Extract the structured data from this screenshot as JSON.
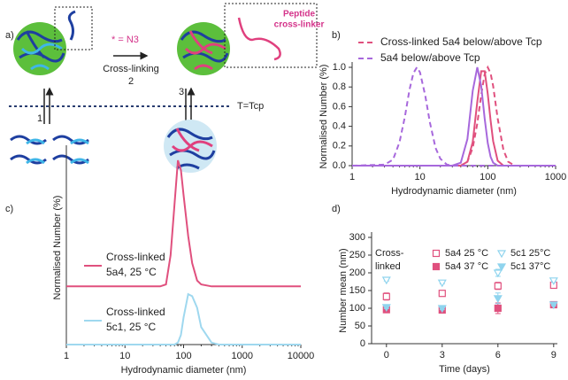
{
  "scheme": {
    "panel": "a)",
    "azide": "* = N3",
    "step2_label": "Cross-linking",
    "step2": "2",
    "step1": "1",
    "step3": "3",
    "temperature": "T=Tcp",
    "peptide": [
      "Peptide",
      "cross-linker"
    ]
  },
  "chart_data": [
    {
      "type": "line",
      "panel": "b)",
      "xlabel": "Hydrodynamic diameter (nm)",
      "ylabel": "Normalised Number (%)",
      "xscale": "log",
      "xlim": [
        1,
        1000
      ],
      "xticks": [
        1,
        10,
        100,
        1000
      ],
      "ylim": [
        0,
        1
      ],
      "yticks": [
        {
          "value": 0,
          "label": "0.0"
        },
        0.2,
        0.4,
        0.6,
        0.8,
        {
          "value": 1,
          "label": "1.0"
        }
      ],
      "x": [
        1,
        3,
        4,
        5,
        6,
        7,
        8,
        9,
        10,
        12,
        14,
        17,
        20,
        25,
        30,
        40,
        50,
        60,
        70,
        80,
        90,
        100,
        110,
        120,
        140,
        170,
        200,
        250,
        300,
        500,
        1000
      ],
      "series": [
        {
          "name": "Cross-linked 5a4 below/above Tcp",
          "color": "#e0507e",
          "curves": [
            {
              "dash": false,
              "values": [
                0,
                0,
                0,
                0,
                0,
                0,
                0,
                0,
                0,
                0,
                0,
                0,
                0,
                0,
                0,
                0,
                0.04,
                0.24,
                0.65,
                0.96,
                0.96,
                0.73,
                0.46,
                0.25,
                0.05,
                0,
                0,
                0,
                0,
                0,
                0
              ]
            },
            {
              "dash": true,
              "values": [
                0,
                0,
                0,
                0,
                0,
                0,
                0,
                0,
                0,
                0,
                0,
                0,
                0,
                0,
                0,
                0,
                0.04,
                0.18,
                0.43,
                0.72,
                0.93,
                1,
                0.94,
                0.81,
                0.48,
                0.16,
                0.04,
                0,
                0,
                0,
                0
              ]
            }
          ]
        },
        {
          "name": "5a4 below/above Tcp",
          "color": "#a768dc",
          "curves": [
            {
              "dash": false,
              "values": [
                0,
                0,
                0,
                0,
                0,
                0,
                0,
                0,
                0,
                0,
                0,
                0,
                0,
                0,
                0,
                0.03,
                0.27,
                0.76,
                1,
                0.81,
                0.48,
                0.23,
                0.09,
                0.03,
                0,
                0,
                0,
                0,
                0,
                0,
                0
              ]
            },
            {
              "dash": true,
              "values": [
                0,
                0.01,
                0.06,
                0.24,
                0.5,
                0.77,
                0.94,
                1,
                0.95,
                0.71,
                0.44,
                0.18,
                0.07,
                0.01,
                0,
                0,
                0,
                0,
                0,
                0,
                0,
                0,
                0,
                0,
                0,
                0,
                0,
                0,
                0,
                0,
                0
              ]
            }
          ]
        }
      ]
    },
    {
      "type": "line",
      "panel": "c)",
      "xlabel": "Hydrodynamic diameter (nm)",
      "ylabel": "Normalised Number (%)",
      "xscale": "log",
      "xlim": [
        1,
        10000
      ],
      "xticks": [
        1,
        10,
        100,
        1000,
        10000
      ],
      "ylim": [
        0,
        1
      ],
      "x": [
        1,
        10,
        40,
        50,
        60,
        70,
        80,
        90,
        100,
        120,
        140,
        170,
        200,
        300,
        400,
        1000,
        10000
      ],
      "series": [
        {
          "name": "Cross-linked 5a4, 25 °C",
          "color": "#e0507e",
          "curves": [
            {
              "dash": false,
              "values": [
                0.3,
                0.3,
                0.3,
                0.31,
                0.46,
                0.72,
                0.95,
                0.9,
                0.77,
                0.56,
                0.42,
                0.33,
                0.31,
                0.3,
                0.3,
                0.3,
                0.3
              ]
            }
          ]
        },
        {
          "name": "Cross-linked 5c1, 25 °C",
          "color": "#9fd8ef",
          "curves": [
            {
              "dash": false,
              "values": [
                0,
                0,
                0,
                0,
                0,
                0,
                0.01,
                0.05,
                0.14,
                0.26,
                0.25,
                0.19,
                0.09,
                0.01,
                0,
                0,
                0
              ]
            }
          ]
        }
      ]
    },
    {
      "type": "scatter",
      "panel": "d)",
      "xlabel": "Time (days)",
      "ylabel": "Number mean (nm)",
      "legend_title": [
        "Cross-",
        "linked"
      ],
      "xlim": [
        -0.8,
        9.2
      ],
      "xticks": [
        0,
        3,
        6,
        9
      ],
      "ylim": [
        0,
        300
      ],
      "yticks": [
        0,
        50,
        100,
        150,
        200,
        250,
        300
      ],
      "x": [
        0,
        3,
        6,
        9
      ],
      "series": [
        {
          "name": "5a4 25 °C",
          "color": "#e0507e",
          "marker": "square",
          "filled": false,
          "values": [
            133,
            142,
            163,
            165
          ],
          "errors": [
            10,
            6,
            10,
            8
          ]
        },
        {
          "name": "5a4 37 °C",
          "color": "#e0507e",
          "marker": "square",
          "filled": true,
          "values": [
            96,
            95,
            100,
            110
          ],
          "errors": [
            4,
            6,
            15,
            3
          ]
        },
        {
          "name": "5c1 25°C",
          "color": "#8fd4ee",
          "marker": "triangle",
          "filled": false,
          "values": [
            180,
            172,
            200,
            178
          ],
          "errors": [
            3,
            3,
            10,
            4
          ]
        },
        {
          "name": "5c1 37°C",
          "color": "#8fd4ee",
          "marker": "triangle",
          "filled": true,
          "values": [
            103,
            100,
            128,
            110
          ],
          "errors": [
            4,
            4,
            15,
            3
          ]
        }
      ]
    }
  ]
}
